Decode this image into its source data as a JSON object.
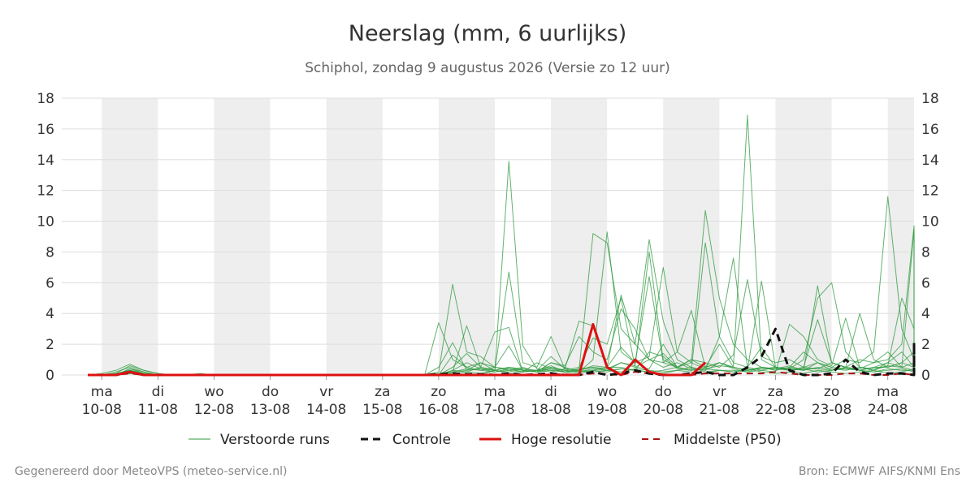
{
  "chart_data": {
    "type": "line",
    "title": "Neerslag (mm, 6 uurlijks)",
    "subtitle": "Schiphol, zondag  9 augustus 2026 (Versie zo 12 uur)",
    "ylim": [
      0,
      18
    ],
    "yticks": [
      0,
      2,
      4,
      6,
      8,
      10,
      12,
      14,
      16,
      18
    ],
    "grid": true,
    "legend_placement": "bottom",
    "x_start_date": "09-08 18:00",
    "x_step": "6 uur",
    "days": [
      {
        "day": "ma",
        "date": "10-08",
        "shaded": true
      },
      {
        "day": "di",
        "date": "11-08",
        "shaded": false
      },
      {
        "day": "wo",
        "date": "12-08",
        "shaded": true
      },
      {
        "day": "do",
        "date": "13-08",
        "shaded": false
      },
      {
        "day": "vr",
        "date": "14-08",
        "shaded": true
      },
      {
        "day": "za",
        "date": "15-08",
        "shaded": false
      },
      {
        "day": "zo",
        "date": "16-08",
        "shaded": true
      },
      {
        "day": "ma",
        "date": "17-08",
        "shaded": false
      },
      {
        "day": "di",
        "date": "18-08",
        "shaded": true
      },
      {
        "day": "wo",
        "date": "19-08",
        "shaded": false
      },
      {
        "day": "do",
        "date": "20-08",
        "shaded": true
      },
      {
        "day": "vr",
        "date": "21-08",
        "shaded": false
      },
      {
        "day": "za",
        "date": "22-08",
        "shaded": true
      },
      {
        "day": "zo",
        "date": "23-08",
        "shaded": false
      },
      {
        "day": "ma",
        "date": "24-08",
        "shaded": true
      }
    ],
    "series": [
      {
        "name": "Controle",
        "color": "#111111",
        "style": "dashed",
        "values": [
          0,
          0,
          0,
          0.2,
          0,
          0,
          0,
          0,
          0,
          0,
          0,
          0,
          0,
          0,
          0,
          0,
          0,
          0,
          0,
          0,
          0,
          0,
          0,
          0,
          0,
          0.05,
          0.1,
          0.05,
          0.05,
          0,
          0.1,
          0,
          0.05,
          0.1,
          0,
          0,
          0.2,
          0,
          0.1,
          0.3,
          0.1,
          0,
          0,
          0.1,
          0.2,
          0,
          0,
          0.5,
          1.2,
          3.0,
          0.3,
          0,
          0,
          0.1,
          1.0,
          0.2,
          0,
          0.1,
          0.1,
          0,
          0.2,
          0,
          0.1,
          0.3,
          0.1,
          0.2,
          2.1,
          0.3,
          0,
          0.1,
          0,
          0.1,
          0
        ]
      },
      {
        "name": "Hoge resolutie",
        "color": "#dd1111",
        "style": "solid",
        "values": [
          0,
          0,
          0,
          0.2,
          0,
          0,
          0,
          0,
          0,
          0,
          0,
          0,
          0,
          0,
          0,
          0,
          0,
          0,
          0,
          0,
          0,
          0,
          0,
          0,
          0,
          0,
          0,
          0,
          0,
          0,
          0,
          0,
          0,
          0,
          0,
          0,
          3.3,
          0.5,
          0,
          1.0,
          0.2,
          0,
          0,
          0,
          0.8
        ]
      },
      {
        "name": "Middelste (P50)",
        "color": "#aa1111",
        "style": "dashed",
        "values": [
          0,
          0,
          0,
          0.1,
          0,
          0,
          0,
          0,
          0,
          0,
          0,
          0,
          0,
          0,
          0,
          0,
          0,
          0,
          0,
          0,
          0,
          0,
          0,
          0,
          0,
          0,
          0,
          0,
          0,
          0,
          0.05,
          0,
          0,
          0.05,
          0.05,
          0,
          0.1,
          0.05,
          0,
          0.2,
          0.1,
          0,
          0,
          0,
          0.1,
          0.1,
          0.1,
          0.1,
          0.1,
          0.2,
          0.1,
          0,
          0,
          0,
          0.1,
          0.1,
          0,
          0,
          0.1,
          0,
          0.1,
          0.1,
          0.1,
          0.3,
          0.1,
          0.1,
          0.2,
          0.1,
          0,
          0.1,
          0.1,
          0.1,
          0.2
        ]
      }
    ],
    "ensemble": {
      "name": "Verstoorde runs",
      "color": "#2e9a3e",
      "members": [
        [
          0,
          0.1,
          0.3,
          0.7,
          0.3,
          0.1,
          0,
          0,
          0,
          0,
          0,
          0,
          0,
          0,
          0,
          0,
          0,
          0,
          0,
          0,
          0,
          0,
          0,
          0,
          0,
          0,
          0,
          0,
          0,
          0.3,
          6.7,
          0.8,
          0.5,
          2.5,
          0.4,
          0.3,
          9.2,
          8.6,
          3.0,
          2.0,
          8.8,
          3.5,
          1.0,
          0.5,
          0.3,
          0.8,
          0.4,
          0.2,
          0.3,
          0.5,
          0.4,
          1.0,
          5.0,
          6.0,
          1.5,
          0.5,
          0.3,
          0.6,
          5.0,
          3.0,
          2.5,
          0.8,
          1.2,
          9.1,
          0.5,
          1.5,
          5.2,
          1.0,
          0.3,
          7.2,
          1.0,
          7.9,
          0.5
        ],
        [
          0,
          0,
          0.2,
          0.5,
          0.2,
          0,
          0,
          0,
          0.1,
          0,
          0,
          0,
          0,
          0,
          0,
          0,
          0,
          0,
          0,
          0,
          0,
          0,
          0,
          0,
          0,
          3.4,
          1.0,
          0.5,
          0.3,
          0.2,
          0.4,
          0.3,
          0.2,
          0.5,
          0.3,
          0.2,
          0.4,
          0.3,
          0.2,
          0.4,
          0.3,
          0.2,
          0.3,
          0.5,
          0.2,
          0.3,
          0.3,
          0.2,
          0.5,
          0.4,
          0.3,
          0.4,
          0.4,
          0.3,
          0.4,
          0.3,
          0.2,
          0.4,
          0.3,
          0.3,
          0.5,
          0.3,
          0.2,
          0.4,
          0.3,
          0.2,
          0.5,
          0.3,
          0.2,
          0.4,
          0.3,
          0.2,
          0.4
        ],
        [
          0,
          0,
          0,
          0.4,
          0.1,
          0,
          0,
          0,
          0,
          0,
          0,
          0,
          0,
          0,
          0,
          0,
          0,
          0,
          0,
          0,
          0,
          0,
          0,
          0,
          0,
          0.2,
          5.9,
          1.5,
          1.2,
          0.5,
          1.9,
          0.3,
          0.2,
          0.8,
          0.5,
          0.2,
          1.0,
          9.3,
          1.5,
          0.8,
          1.2,
          7.0,
          1.5,
          0.8,
          10.7,
          5.0,
          2.0,
          1.0,
          0.5,
          0.3,
          0.5,
          1.5,
          0.8,
          0.5,
          1.0,
          0.8,
          1.5,
          11.6,
          3.0,
          1.0,
          2.0,
          1.0,
          0.8,
          5.0,
          1.2,
          0.8,
          1.5,
          1.0,
          0.5,
          0.8,
          0.5,
          0.4,
          0.3
        ],
        [
          0,
          0,
          0.1,
          0.3,
          0.1,
          0,
          0,
          0,
          0,
          0,
          0,
          0,
          0,
          0,
          0,
          0,
          0,
          0,
          0,
          0,
          0,
          0,
          0,
          0,
          0,
          0,
          0.3,
          0.8,
          0.4,
          0.3,
          13.9,
          1.9,
          0.4,
          0.3,
          0.2,
          0.4,
          0.5,
          0.3,
          0.8,
          0.5,
          0.4,
          2.0,
          0.5,
          1.0,
          0.5,
          2.0,
          0.5,
          16.9,
          1.0,
          0.5,
          0.3,
          0.5,
          0.4,
          0.8,
          0.5,
          1.0,
          0.8,
          1.0,
          2.0,
          9.7,
          3.0,
          0.5,
          4.0,
          1.5,
          1.0,
          6.0,
          0.5,
          1.0,
          0.3,
          0.5,
          0.3,
          1.0,
          0.5
        ],
        [
          0,
          0,
          0,
          0.2,
          0,
          0,
          0,
          0,
          0,
          0,
          0,
          0,
          0,
          0,
          0,
          0,
          0,
          0,
          0,
          0,
          0,
          0,
          0,
          0,
          0,
          0.1,
          0.2,
          3.2,
          0.5,
          2.8,
          3.1,
          0.2,
          0.3,
          1.2,
          0.4,
          3.5,
          3.2,
          0.5,
          5.2,
          2.0,
          1.0,
          0.5,
          0.8,
          0.4,
          0.3,
          2.5,
          7.6,
          0.5,
          0.3,
          0.2,
          3.3,
          2.5,
          1.0,
          0.6,
          3.7,
          0.5,
          0.3,
          0.8,
          1.5,
          0.5,
          2.0,
          1.0,
          0.5,
          3.5,
          1.2,
          1.0,
          0.8,
          9.1,
          3.0,
          1.5,
          2.0,
          1.5,
          1.2
        ],
        [
          0,
          0,
          0,
          0.1,
          0,
          0,
          0,
          0,
          0,
          0,
          0,
          0,
          0,
          0,
          0,
          0,
          0,
          0,
          0,
          0,
          0,
          0,
          0,
          0,
          0,
          0,
          1.3,
          0.5,
          0.8,
          0.3,
          0.5,
          0.4,
          0.2,
          0.8,
          0.6,
          2.5,
          1.5,
          1.0,
          4.3,
          3.0,
          1.0,
          1.4,
          0.5,
          1.0,
          0.8,
          0.5,
          1.3,
          6.2,
          1.2,
          0.8,
          1.0,
          0.5,
          3.6,
          0.8,
          0.5,
          4.0,
          1.0,
          0.5,
          0.8,
          1.5,
          0.8,
          5.7,
          1.0,
          3.0,
          6.0,
          1.5,
          1.0,
          3.0,
          5.4,
          0.5,
          0.8,
          1.0,
          0.6
        ],
        [
          0,
          0,
          0,
          0.3,
          0.1,
          0,
          0,
          0,
          0,
          0,
          0,
          0,
          0,
          0,
          0,
          0,
          0,
          0,
          0,
          0,
          0,
          0,
          0,
          0,
          0,
          0.5,
          2.1,
          0.3,
          0.4,
          0.2,
          0.3,
          0.5,
          0.2,
          0.4,
          0.3,
          0.5,
          2.4,
          2.0,
          5.0,
          0.5,
          1.0,
          0.8,
          0.5,
          0.3,
          8.6,
          2.5,
          0.8,
          0.5,
          1.8,
          0.5,
          0.4,
          0.3,
          0.8,
          0.5,
          0.4,
          0.3,
          0.5,
          0.5,
          0.8,
          0.5,
          5.8,
          0.8,
          0.5,
          1.0,
          1.5,
          0.8,
          0.5,
          2.5,
          0.8,
          1.2,
          0.8,
          1.5,
          1.0
        ],
        [
          0,
          0,
          0,
          0.2,
          0,
          0,
          0,
          0,
          0,
          0,
          0,
          0,
          0,
          0,
          0,
          0,
          0,
          0,
          0,
          0,
          0,
          0,
          0,
          0,
          0,
          0,
          0.5,
          1.4,
          0.5,
          0.3,
          0.5,
          0.3,
          0.2,
          0.3,
          0.2,
          0.3,
          0.6,
          0.5,
          1.8,
          0.8,
          6.4,
          0.8,
          1.5,
          4.2,
          0.5,
          0.8,
          0.5,
          0.3,
          0.5,
          0.3,
          0.5,
          0.3,
          5.8,
          0.8,
          0.5,
          0.3,
          0.5,
          0.8,
          0.5,
          9.5,
          0.8,
          1.0,
          0.5,
          0.8,
          1.2,
          0.5,
          0.8,
          0.5,
          0.3,
          0.5,
          0.4,
          0.3,
          0.8
        ],
        [
          0,
          0,
          0,
          0.2,
          0.1,
          0,
          0,
          0,
          0,
          0,
          0,
          0,
          0,
          0,
          0,
          0,
          0,
          0,
          0,
          0,
          0,
          0,
          0,
          0,
          0,
          0,
          0.2,
          0.3,
          0.8,
          0.5,
          0.4,
          0.2,
          0.3,
          0.5,
          0.3,
          0.2,
          0.3,
          0.5,
          0.5,
          0.3,
          1.5,
          1.2,
          0.4,
          0.3,
          0.5,
          0.8,
          0.5,
          0.3,
          6.1,
          0.5,
          0.3,
          0.5,
          0.8,
          0.3,
          0.5,
          0.4,
          0.8,
          1.5,
          0.5,
          0.8,
          1.5,
          0.5,
          0.3,
          0.5,
          0.8,
          0.5,
          0.3,
          0.5,
          0.4,
          0.3,
          0.5,
          0.4,
          6.2
        ],
        [
          0,
          0,
          0,
          0.1,
          0,
          0,
          0,
          0,
          0,
          0,
          0,
          0,
          0,
          0,
          0,
          0,
          0,
          0,
          0,
          0,
          0,
          0,
          0,
          0,
          0,
          0,
          0.1,
          0.2,
          0.1,
          0.3,
          0.1,
          0.2,
          0.8,
          0.4,
          0.2,
          0.1,
          0.3,
          0.2,
          0.4,
          0.3,
          0.2,
          0.1,
          0.3,
          0.2,
          0.1,
          0.3,
          0.2,
          0.4,
          0.2,
          0.1,
          0.2,
          0.1,
          0.3,
          0.2,
          0.1,
          0.2,
          0.3,
          0.1,
          0.2,
          0.4,
          0.1,
          0.2,
          0.3,
          0.1,
          0.2,
          0.1,
          0.3,
          0.2,
          0.1,
          0.2,
          0.1,
          0.2,
          0.1
        ],
        [
          0,
          0,
          0,
          0.4,
          0.2,
          0,
          0,
          0,
          0,
          0,
          0,
          0,
          0,
          0,
          0,
          0,
          0,
          0,
          0,
          0,
          0,
          0,
          0,
          0,
          0,
          0,
          0.3,
          0.2,
          0.5,
          0.3,
          0.2,
          0.4,
          0.3,
          0.2,
          0.4,
          0.3,
          0.5,
          0.4,
          0.8,
          0.6,
          8.0,
          1.0,
          0.5,
          0.8,
          0.4,
          0.6,
          0.5,
          0.3,
          0.5,
          0.4,
          0.6,
          0.3,
          0.5,
          0.4,
          0.3,
          0.5,
          0.4,
          0.6,
          0.5,
          0.3,
          0.5,
          8.8,
          0.6,
          0.4,
          0.5,
          0.3,
          0.4,
          0.6,
          0.5,
          0.3,
          0.4,
          0.5,
          4.9
        ],
        [
          0,
          0,
          0.1,
          0.6,
          0.3,
          0.1,
          0,
          0,
          0,
          0,
          0,
          0,
          0,
          0,
          0,
          0,
          0,
          0,
          0,
          0,
          0,
          0,
          0,
          0,
          0,
          0,
          0.2,
          0.4,
          0.3,
          0.5,
          0.3,
          0.2,
          0.3,
          0.6,
          0.2,
          0.3,
          0.2,
          0.3,
          0.4,
          0.3,
          0.2,
          0.3,
          0.5,
          0.3,
          0.4,
          0.3,
          0.2,
          0.3,
          0.4,
          0.5,
          0.3,
          0.4,
          0.2,
          0.3,
          0.5,
          0.3,
          0.2,
          0.3,
          0.4,
          0.2,
          4.7,
          0.3,
          0.2,
          0.4,
          0.3,
          0.5,
          0.3,
          0.2,
          0.3,
          0.4,
          0.2,
          0.3,
          0.4
        ]
      ]
    },
    "legend": [
      {
        "label": "Verstoorde runs",
        "key": "ensemble"
      },
      {
        "label": "Controle",
        "key": "controle"
      },
      {
        "label": "Hoge resolutie",
        "key": "hires"
      },
      {
        "label": "Middelste (P50)",
        "key": "p50"
      }
    ]
  },
  "footer": {
    "left": "Gegenereerd door MeteoVPS (meteo-service.nl)",
    "right": "Bron: ECMWF AIFS/KNMI Ens"
  }
}
